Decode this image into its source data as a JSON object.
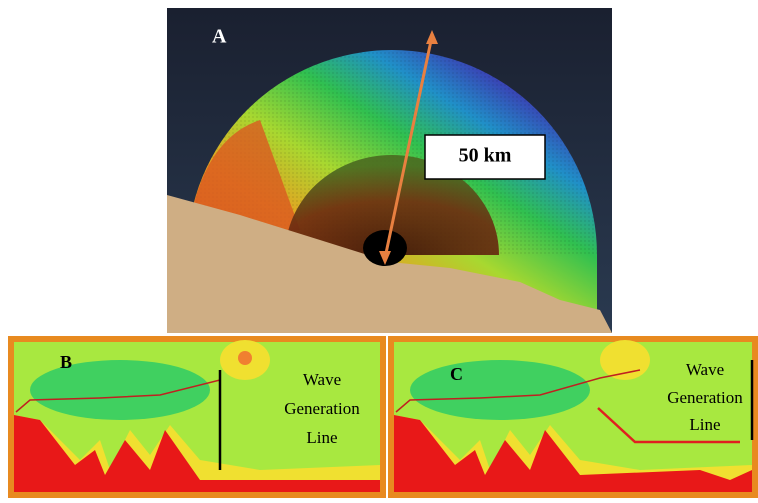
{
  "panels": [
    {
      "label": "A",
      "annotation": "50 km"
    },
    {
      "label": "B",
      "annotation_lines": [
        "Wave",
        "Generation",
        "Line"
      ]
    },
    {
      "label": "C",
      "annotation_lines": [
        "Wave",
        "Generation",
        "Line"
      ]
    }
  ]
}
